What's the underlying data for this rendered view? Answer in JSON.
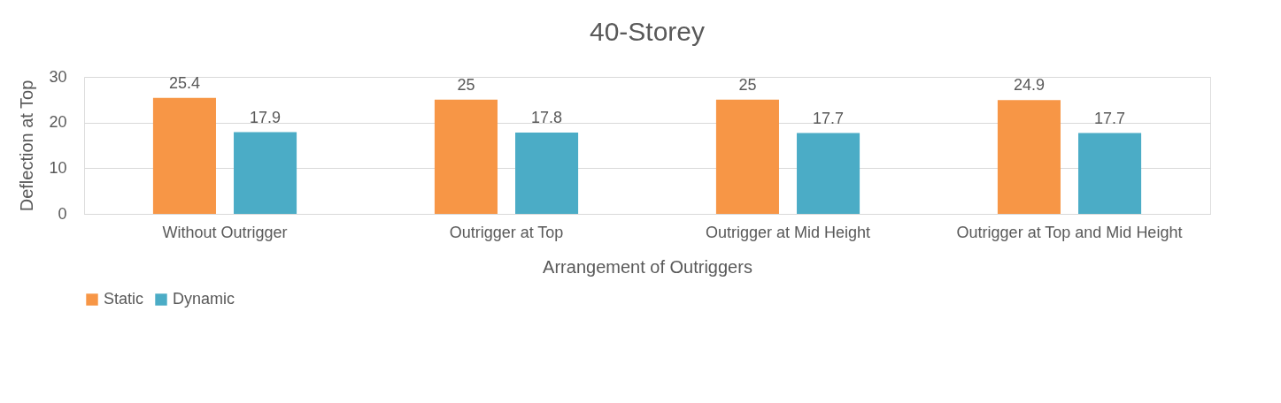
{
  "chart_data": {
    "type": "bar",
    "title": "40-Storey",
    "xlabel": "Arrangement of Outriggers",
    "ylabel": "Deflection at Top",
    "categories": [
      "Without Outrigger",
      "Outrigger at Top",
      "Outrigger at Mid Height",
      "Outrigger at Top and Mid Height"
    ],
    "series": [
      {
        "name": "Static",
        "color": "#f79646",
        "values": [
          25.4,
          25,
          25,
          24.9
        ]
      },
      {
        "name": "Dynamic",
        "color": "#4bacc6",
        "values": [
          17.9,
          17.8,
          17.7,
          17.7
        ]
      }
    ],
    "ylim": [
      0,
      30
    ],
    "yticks": [
      0,
      10,
      20,
      30
    ],
    "grid": "y",
    "legend": "bottom",
    "data_labels": true
  }
}
